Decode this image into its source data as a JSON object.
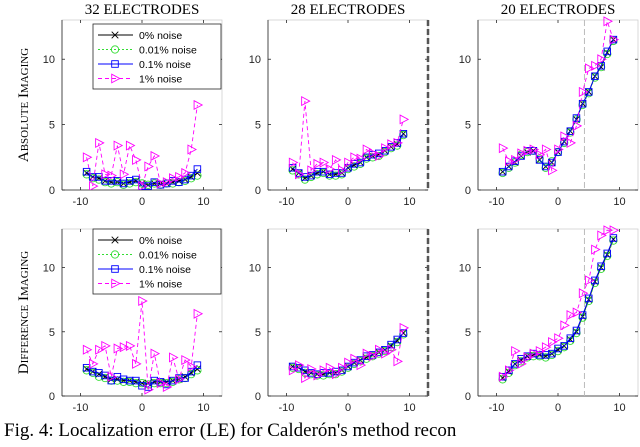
{
  "caption": "Fig. 4: Localization error (LE) for Calderón's method recon",
  "chart_data": {
    "type": "line",
    "column_titles": [
      "32 ELECTRODES",
      "28 ELECTRODES",
      "20 ELECTRODES"
    ],
    "row_titles": [
      "ABSOLUTE IMAGING",
      "DIFFERENCE IMAGING"
    ],
    "xlim": [
      -13,
      13
    ],
    "ylim": [
      0,
      13
    ],
    "xticks": [
      -10,
      0,
      10
    ],
    "yticks": [
      0,
      5,
      10
    ],
    "x": [
      -9,
      -8,
      -7,
      -6,
      -5,
      -4,
      -3,
      -2,
      -1,
      0,
      1,
      2,
      3,
      4,
      5,
      6,
      7,
      8,
      9
    ],
    "legend": [
      "0% noise",
      "0.01% noise",
      "0.1% noise",
      "1% noise"
    ],
    "series_colors": [
      "#000000",
      "#33dd33",
      "#0000ff",
      "#ff00ff"
    ],
    "panels": [
      {
        "row": 0,
        "col": 0,
        "series": [
          {
            "name": "0% noise",
            "values": [
              1.3,
              1.0,
              0.9,
              0.7,
              0.6,
              0.6,
              0.5,
              0.6,
              0.7,
              0.5,
              0.4,
              0.5,
              0.5,
              0.5,
              0.6,
              0.7,
              0.8,
              1.0,
              1.3
            ]
          },
          {
            "name": "0.01% noise",
            "values": [
              1.2,
              0.9,
              0.8,
              0.6,
              0.5,
              0.6,
              0.4,
              0.5,
              0.6,
              0.5,
              0.4,
              0.5,
              0.4,
              0.5,
              0.5,
              0.6,
              0.7,
              0.9,
              1.1
            ]
          },
          {
            "name": "0.1% noise",
            "values": [
              1.4,
              1.0,
              1.0,
              0.7,
              0.7,
              0.7,
              0.5,
              0.7,
              0.8,
              0.3,
              0.3,
              0.6,
              0.4,
              0.5,
              0.7,
              0.6,
              0.8,
              1.1,
              1.6
            ]
          },
          {
            "name": "1% noise",
            "values": [
              2.5,
              0.3,
              3.6,
              1.2,
              1.1,
              3.4,
              1.2,
              3.4,
              2.3,
              0.3,
              1.8,
              2.6,
              0.5,
              0.6,
              0.9,
              1.0,
              1.3,
              3.1,
              6.5
            ]
          }
        ]
      },
      {
        "row": 0,
        "col": 1,
        "dashed_x": 13,
        "series": [
          {
            "name": "0% noise",
            "values": [
              1.6,
              1.3,
              0.9,
              1.1,
              1.3,
              1.4,
              1.2,
              1.2,
              1.3,
              1.7,
              1.9,
              2.1,
              2.5,
              2.6,
              2.7,
              3.0,
              3.3,
              3.5,
              4.3
            ]
          },
          {
            "name": "0.01% noise",
            "values": [
              1.5,
              1.2,
              0.8,
              1.0,
              1.2,
              1.3,
              1.1,
              1.1,
              1.2,
              1.6,
              1.8,
              2.0,
              2.4,
              2.5,
              2.6,
              2.9,
              3.2,
              3.4,
              4.2
            ]
          },
          {
            "name": "0.1% noise",
            "values": [
              1.7,
              1.3,
              1.0,
              1.1,
              1.4,
              1.4,
              1.2,
              1.3,
              1.3,
              1.7,
              2.0,
              2.1,
              2.5,
              2.7,
              2.8,
              3.0,
              3.3,
              3.6,
              4.3
            ]
          },
          {
            "name": "1% noise",
            "values": [
              2.1,
              1.2,
              6.8,
              1.5,
              2.0,
              2.1,
              1.6,
              2.3,
              1.5,
              2.1,
              2.5,
              2.4,
              3.1,
              2.8,
              2.6,
              3.2,
              3.5,
              3.6,
              5.4
            ]
          }
        ]
      },
      {
        "row": 0,
        "col": 2,
        "dashed_x": 4.3,
        "series": [
          {
            "name": "0% noise",
            "values": [
              1.4,
              1.8,
              2.1,
              2.6,
              2.9,
              3.0,
              2.3,
              1.8,
              2.1,
              2.9,
              3.7,
              4.5,
              5.4,
              6.6,
              7.5,
              8.7,
              9.4,
              10.5,
              11.5
            ]
          },
          {
            "name": "0.01% noise",
            "values": [
              1.3,
              1.7,
              2.1,
              2.7,
              2.9,
              3.0,
              2.4,
              1.7,
              2.2,
              2.9,
              3.6,
              4.4,
              5.4,
              6.5,
              7.4,
              8.6,
              9.4,
              10.4,
              11.4
            ]
          },
          {
            "name": "0.1% noise",
            "values": [
              1.4,
              1.8,
              2.2,
              2.6,
              3.0,
              3.0,
              2.3,
              1.8,
              2.1,
              2.9,
              3.7,
              4.5,
              5.5,
              6.6,
              7.5,
              8.7,
              9.5,
              10.6,
              11.5
            ]
          },
          {
            "name": "1% noise",
            "values": [
              3.2,
              2.2,
              2.3,
              2.8,
              3.0,
              3.1,
              2.7,
              3.1,
              1.5,
              3.1,
              4.1,
              3.6,
              4.9,
              7.5,
              9.3,
              9.5,
              10.0,
              12.9,
              11.5
            ]
          }
        ]
      },
      {
        "row": 1,
        "col": 0,
        "series": [
          {
            "name": "0% noise",
            "values": [
              2.1,
              1.9,
              1.7,
              1.5,
              1.3,
              1.3,
              1.2,
              1.2,
              1.1,
              1.0,
              1.0,
              1.1,
              1.1,
              1.1,
              1.2,
              1.3,
              1.5,
              1.8,
              2.1
            ]
          },
          {
            "name": "0.01% noise",
            "values": [
              2.0,
              1.8,
              1.5,
              1.4,
              1.2,
              1.2,
              1.1,
              1.1,
              1.0,
              1.0,
              0.9,
              1.0,
              1.0,
              1.0,
              1.1,
              1.3,
              1.4,
              1.7,
              2.0
            ]
          },
          {
            "name": "0.1% noise",
            "values": [
              2.2,
              1.9,
              1.8,
              1.6,
              1.2,
              1.5,
              1.3,
              1.2,
              1.2,
              0.8,
              0.7,
              1.2,
              1.1,
              0.9,
              1.2,
              1.4,
              1.4,
              1.9,
              2.4
            ]
          },
          {
            "name": "1% noise",
            "values": [
              3.6,
              2.5,
              3.6,
              3.9,
              1.5,
              3.7,
              3.8,
              3.9,
              2.5,
              7.4,
              0.5,
              3.3,
              1.0,
              0.7,
              3.0,
              1.3,
              2.8,
              2.3,
              6.4
            ]
          }
        ]
      },
      {
        "row": 1,
        "col": 1,
        "dashed_x": 13,
        "series": [
          {
            "name": "0% noise",
            "values": [
              2.3,
              2.2,
              1.9,
              1.8,
              1.7,
              1.7,
              1.8,
              1.8,
              2.0,
              2.3,
              2.6,
              2.8,
              3.0,
              3.2,
              3.4,
              3.6,
              3.9,
              4.3,
              4.9
            ]
          },
          {
            "name": "0.01% noise",
            "values": [
              2.2,
              2.1,
              1.8,
              1.7,
              1.6,
              1.6,
              1.7,
              1.7,
              1.9,
              2.2,
              2.5,
              2.7,
              2.9,
              3.1,
              3.3,
              3.5,
              3.8,
              4.2,
              4.8
            ]
          },
          {
            "name": "0.1% noise",
            "values": [
              2.3,
              2.2,
              2.0,
              1.8,
              1.7,
              1.8,
              1.8,
              1.9,
              2.0,
              2.3,
              2.6,
              2.8,
              3.1,
              3.2,
              3.4,
              3.6,
              4.0,
              4.4,
              4.9
            ]
          },
          {
            "name": "1% noise",
            "values": [
              2.0,
              2.4,
              1.4,
              2.1,
              1.6,
              2.0,
              2.2,
              1.7,
              2.2,
              2.6,
              2.9,
              2.4,
              3.3,
              3.1,
              3.6,
              3.3,
              3.6,
              2.7,
              5.3
            ]
          }
        ]
      },
      {
        "row": 1,
        "col": 2,
        "dashed_x": 4.3,
        "series": [
          {
            "name": "0% noise",
            "values": [
              1.4,
              1.9,
              2.5,
              2.8,
              3.1,
              3.2,
              3.2,
              3.1,
              3.3,
              3.6,
              3.9,
              4.4,
              5.0,
              6.2,
              7.5,
              8.9,
              10.0,
              11.0,
              12.2
            ]
          },
          {
            "name": "0.01% noise",
            "values": [
              1.3,
              1.8,
              2.4,
              2.7,
              3.0,
              3.1,
              3.1,
              3.0,
              3.2,
              3.5,
              3.8,
              4.3,
              4.9,
              6.1,
              7.4,
              8.8,
              9.9,
              10.9,
              12.1
            ]
          },
          {
            "name": "0.1% noise",
            "values": [
              1.5,
              2.0,
              2.5,
              2.9,
              3.1,
              3.3,
              3.2,
              3.2,
              3.3,
              3.7,
              3.9,
              4.5,
              5.1,
              6.3,
              7.6,
              9.0,
              10.1,
              11.1,
              12.3
            ]
          },
          {
            "name": "1% noise",
            "values": [
              1.5,
              2.0,
              3.5,
              2.5,
              3.0,
              3.3,
              3.5,
              3.8,
              4.2,
              4.5,
              5.5,
              6.3,
              6.5,
              8.0,
              9.0,
              11.4,
              12.5,
              12.9,
              12.9
            ]
          }
        ]
      }
    ]
  }
}
